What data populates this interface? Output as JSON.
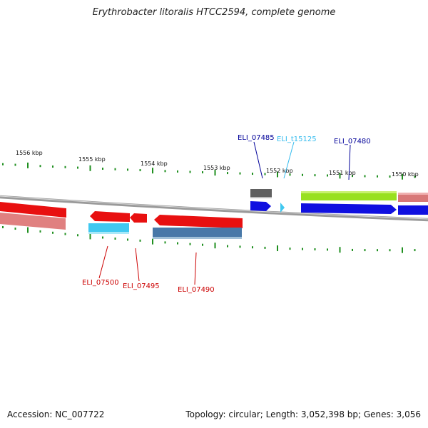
{
  "title": "Erythrobacter litoralis HTCC2594, complete genome",
  "footer": {
    "accession": "Accession: NC_007722",
    "topology": "Topology: circular; Length: 3,052,398 bp; Genes: 3,056"
  },
  "colors": {
    "forward_cds": "#1010e0",
    "reverse_cds": "#e81010",
    "reverse_cds_feature": "#d87878",
    "reverse_feature": "#4878a8",
    "rna": "#40c8f0",
    "gene_gray": "#606060",
    "other_gene": "#98e020",
    "tick": "#1f8f1f",
    "backbone": "#888888"
  },
  "scale_labels": [
    "1556 kbp",
    "1555 kbp",
    "1554 kbp",
    "1553 kbp",
    "1552 kbp",
    "1551 kbp",
    "1550 kbp"
  ],
  "gene_labels": [
    {
      "text": "ELI_07485",
      "color": "#000099"
    },
    {
      "text": "ELI_t15125",
      "color": "#33bbee"
    },
    {
      "text": "ELI_07480",
      "color": "#000099"
    },
    {
      "text": "ELI_07500",
      "color": "#cc0000"
    },
    {
      "text": "ELI_07495",
      "color": "#cc0000"
    },
    {
      "text": "ELI_07490",
      "color": "#cc0000"
    }
  ]
}
